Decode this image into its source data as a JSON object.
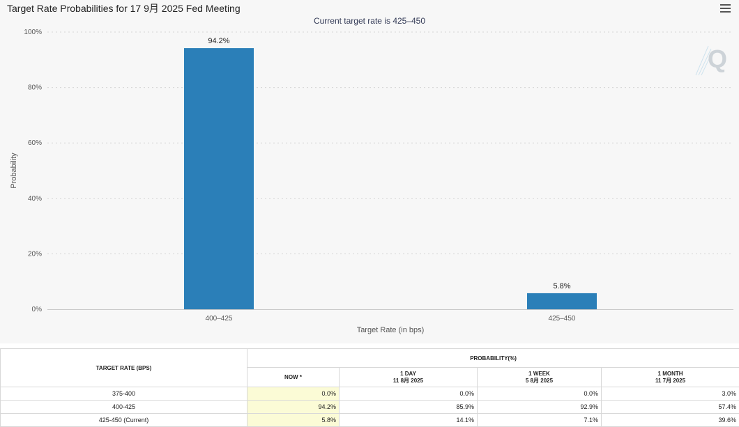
{
  "chart_data": {
    "type": "bar",
    "title": "Target Rate Probabilities for 17 9月 2025 Fed Meeting",
    "subtitle": "Current target rate is 425–450",
    "xlabel": "Target Rate (in bps)",
    "ylabel": "Probability",
    "categories": [
      "400–425",
      "425–450"
    ],
    "values": [
      94.2,
      5.8
    ],
    "data_labels": [
      "94.2%",
      "5.8%"
    ],
    "ylim": [
      0,
      100
    ],
    "yticks": [
      "0%",
      "20%",
      "40%",
      "60%",
      "80%",
      "100%"
    ],
    "grid": true,
    "bar_color": "#2b7fb8"
  },
  "watermark": {
    "letter": "Q"
  },
  "table": {
    "header_target": "TARGET RATE (BPS)",
    "header_probability": "PROBABILITY(%)",
    "columns": [
      {
        "label": "NOW *",
        "date": ""
      },
      {
        "label": "1 DAY",
        "date": "11 8月 2025"
      },
      {
        "label": "1 WEEK",
        "date": "5 8月 2025"
      },
      {
        "label": "1 MONTH",
        "date": "11 7月 2025"
      }
    ],
    "rows": [
      {
        "rate": "375-400",
        "values": [
          "0.0%",
          "0.0%",
          "0.0%",
          "3.0%"
        ]
      },
      {
        "rate": "400-425",
        "values": [
          "94.2%",
          "85.9%",
          "92.9%",
          "57.4%"
        ]
      },
      {
        "rate": "425-450 (Current)",
        "values": [
          "5.8%",
          "14.1%",
          "7.1%",
          "39.6%"
        ]
      }
    ]
  }
}
